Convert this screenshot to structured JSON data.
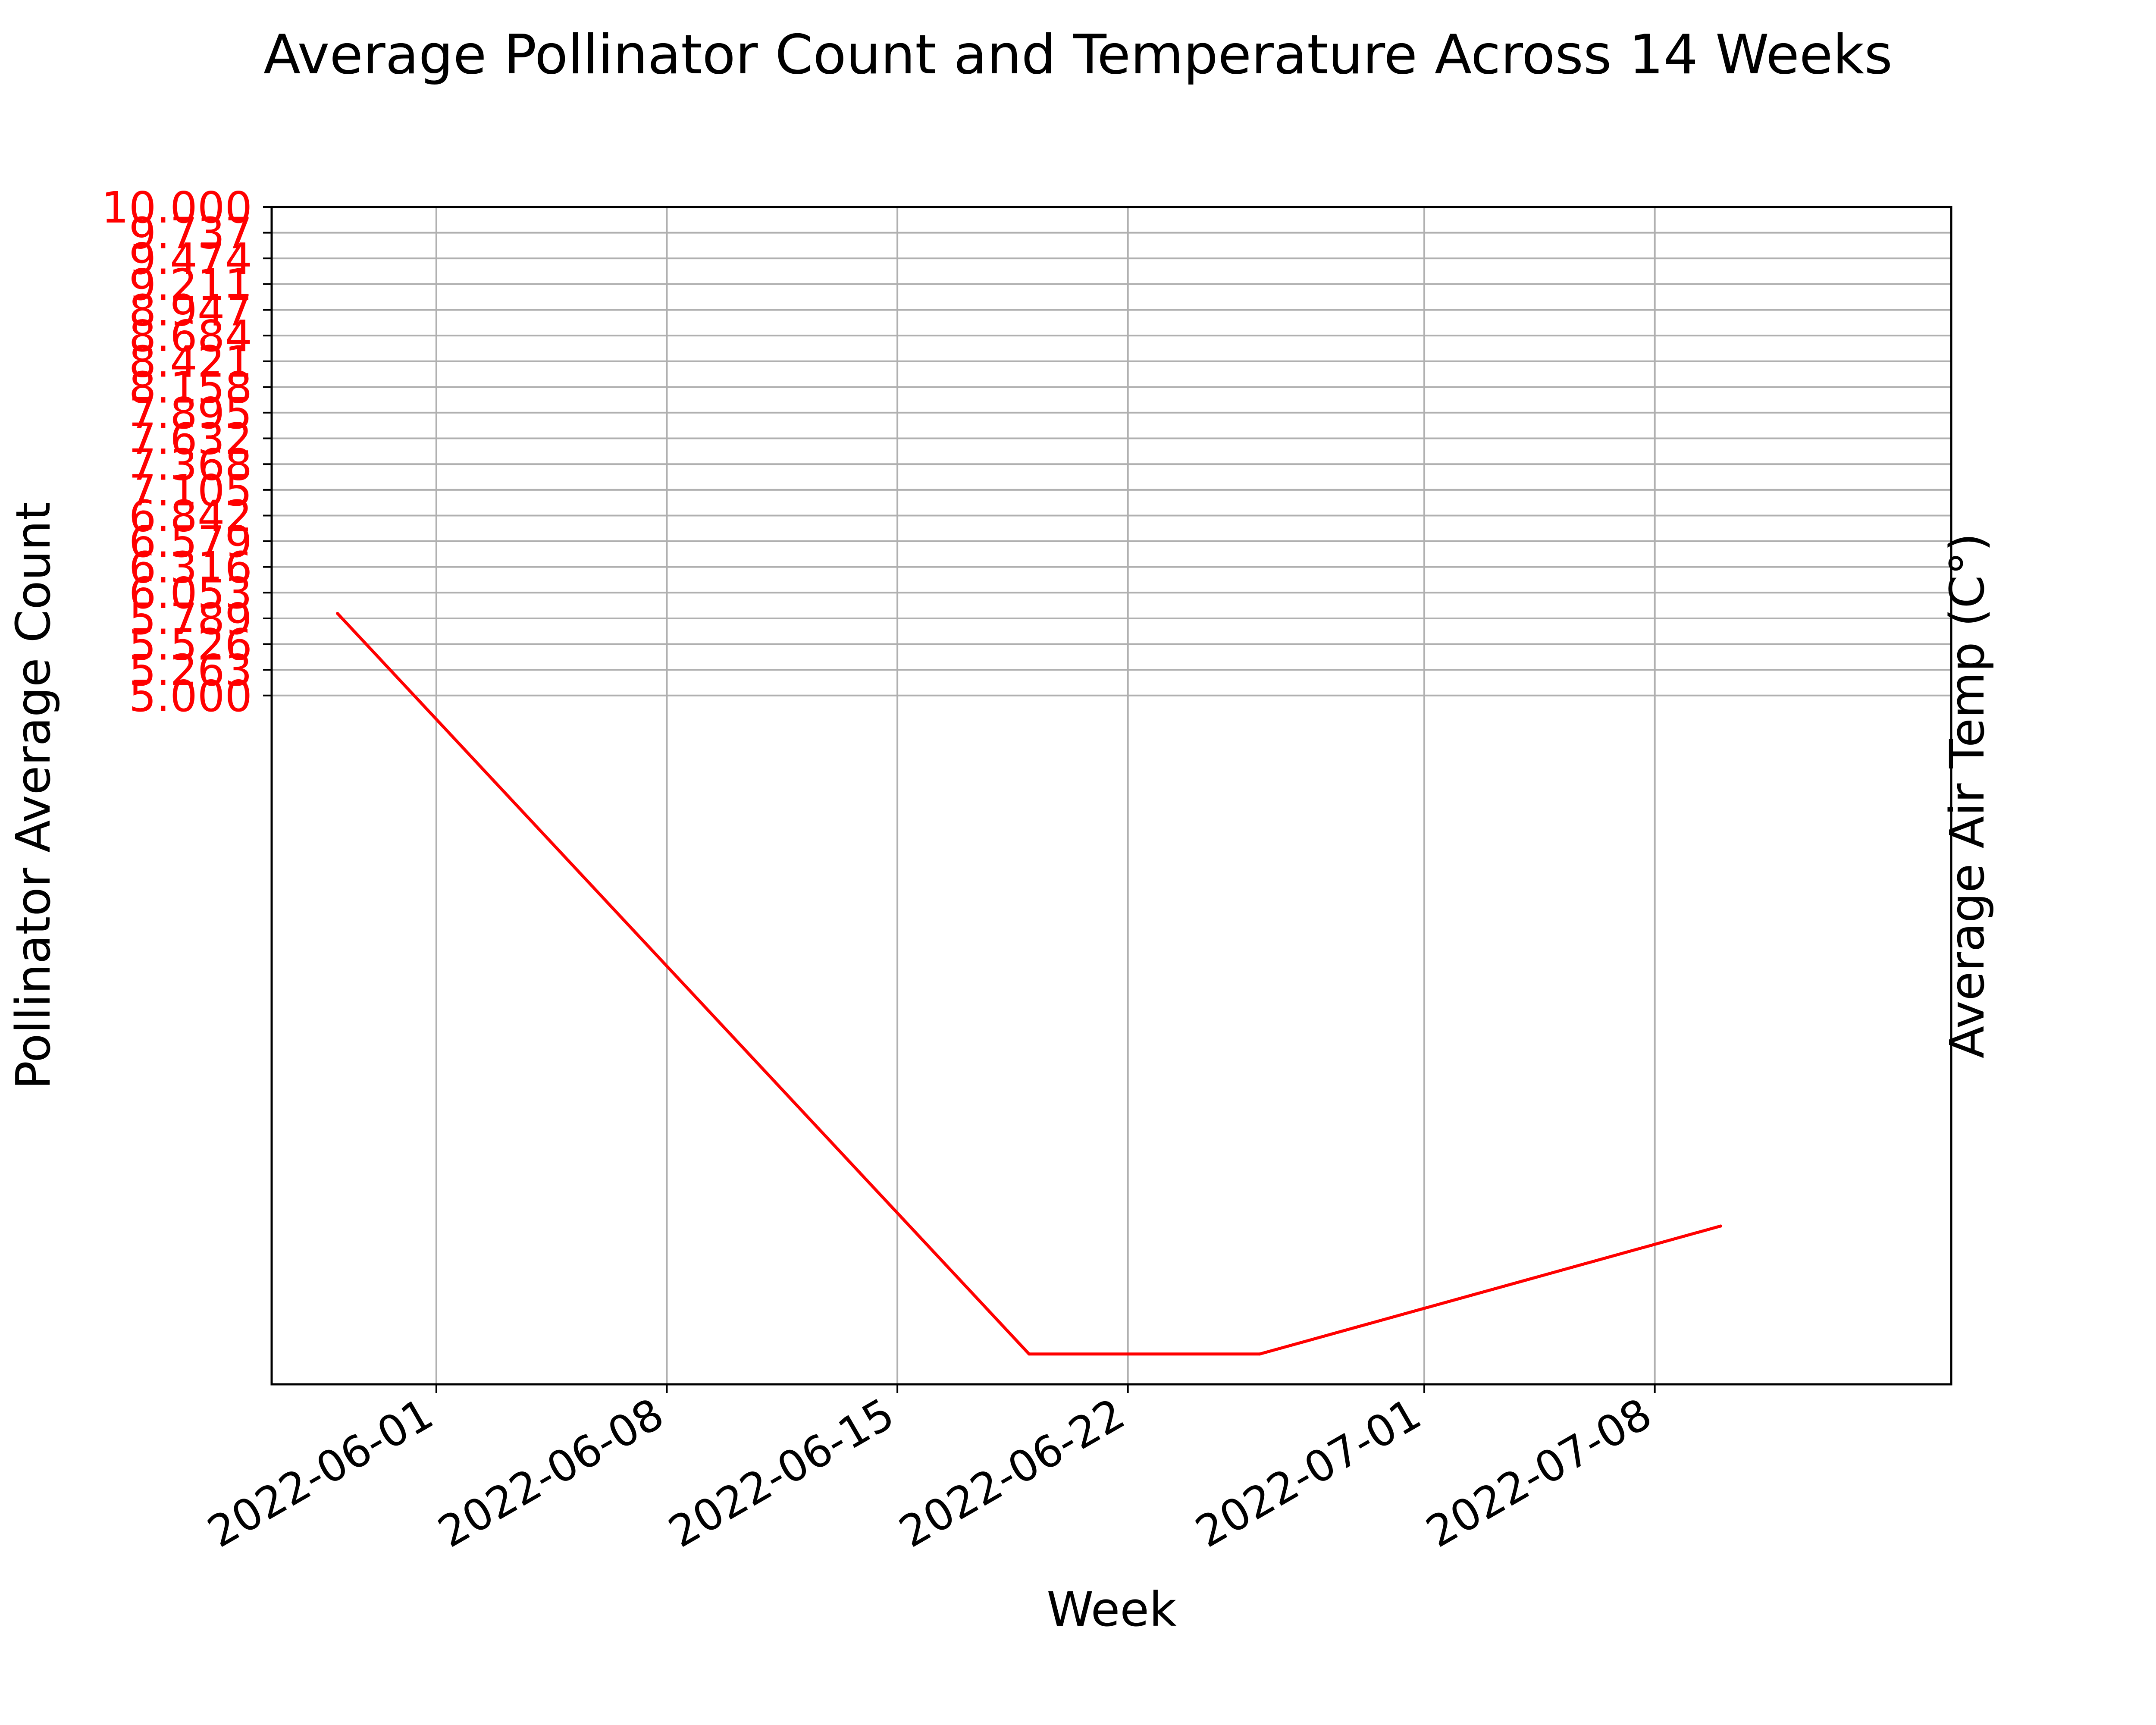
{
  "chart_data": {
    "type": "line",
    "title": "Average Pollinator Count and Temperature Across 14 Weeks",
    "xlabel": "Week",
    "ylabel": "Pollinator Average Count",
    "ylabel_right": "Average Air Temp (C°)",
    "line_color": "#ff0000",
    "grid": true,
    "xlim": [
      "2022-05-27",
      "2022-07-17"
    ],
    "ylim": [
      -2.05,
      10.0
    ],
    "x_ticks": [
      "2022-06-01",
      "2022-06-08",
      "2022-06-15",
      "2022-06-22",
      "2022-07-01",
      "2022-07-08"
    ],
    "y_ticks": [
      "5.000",
      "5.263",
      "5.526",
      "5.789",
      "6.053",
      "6.316",
      "6.579",
      "6.842",
      "7.105",
      "7.368",
      "7.632",
      "7.895",
      "8.158",
      "8.421",
      "8.684",
      "8.947",
      "9.211",
      "9.474",
      "9.737",
      "10.000"
    ],
    "series": [
      {
        "x": [
          "2022-05-29",
          "2022-06-19",
          "2022-06-26",
          "2022-07-10"
        ],
        "y": [
          5.84,
          -1.74,
          -1.74,
          -0.43
        ]
      }
    ]
  }
}
